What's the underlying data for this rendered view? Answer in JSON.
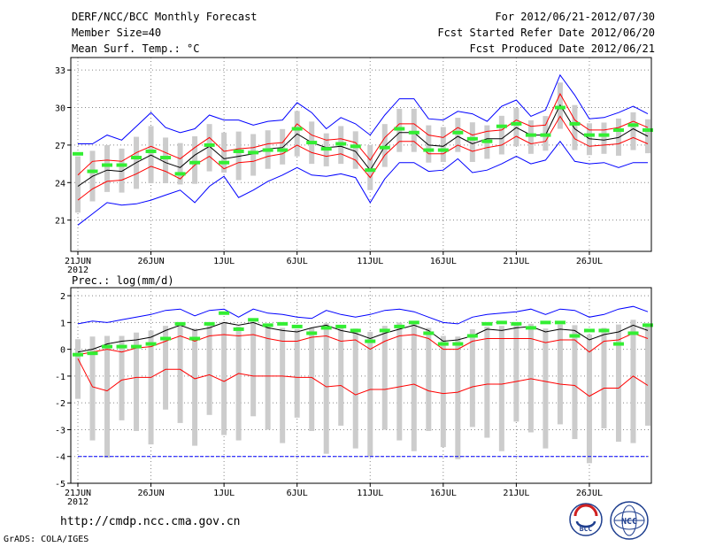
{
  "header": {
    "title": "DERF/NCC/BCC Monthly Forecast",
    "member_size": "Member Size=40",
    "variable": "Mean Surf. Temp.: °C",
    "period": "For 2012/06/21-2012/07/30",
    "refer_date": "Fcst Started Refer Date 2012/06/20",
    "produced_date": "Fcst Produced Date 2012/06/21"
  },
  "precip_label": "Prec.: log(mm/d)",
  "footer": {
    "url": "http://cmdp.ncc.cma.gov.cn",
    "credit": "GrADS: COLA/IGES",
    "logo_bcc": "BCC",
    "logo_ncc": "NCC"
  },
  "colors": {
    "ensemble_max_min": "#0000ff",
    "spread_band": "#ff0000",
    "ensemble_mean": "#000000",
    "member_box": "#cccccc",
    "observed_bar": "#33ee33"
  },
  "chart_data": [
    {
      "type": "line",
      "title": "Mean Surf. Temp.: °C",
      "x": [
        "21JUN",
        "22JUN",
        "23JUN",
        "24JUN",
        "25JUN",
        "26JUN",
        "27JUN",
        "28JUN",
        "29JUN",
        "30JUN",
        "1JUL",
        "2JUL",
        "3JUL",
        "4JUL",
        "5JUL",
        "6JUL",
        "7JUL",
        "8JUL",
        "9JUL",
        "10JUL",
        "11JUL",
        "12JUL",
        "13JUL",
        "14JUL",
        "15JUL",
        "16JUL",
        "17JUL",
        "18JUL",
        "19JUL",
        "20JUL",
        "21JUL",
        "22JUL",
        "23JUL",
        "24JUL",
        "25JUL",
        "26JUL",
        "27JUL",
        "28JUL",
        "29JUL",
        "30JUL"
      ],
      "xticks": [
        "21JUN",
        "26JUN",
        "1JUL",
        "6JUL",
        "11JUL",
        "16JUL",
        "21JUL",
        "26JUL"
      ],
      "xtick_index": [
        0,
        5,
        10,
        15,
        20,
        25,
        30,
        35
      ],
      "year_label": "2012",
      "ylim": [
        18.5,
        34
      ],
      "yticks": [
        21,
        24,
        27,
        30,
        33
      ],
      "grid": true,
      "series": [
        {
          "name": "max",
          "color": "#0000ff",
          "values": [
            20.6,
            21.5,
            22.4,
            22.2,
            22.3,
            22.6,
            23.0,
            23.4,
            22.4,
            23.7,
            24.5,
            22.8,
            23.4,
            24.1,
            24.6,
            25.2,
            24.6,
            24.5,
            24.7,
            24.4,
            22.4,
            24.3,
            25.6,
            25.6,
            24.9,
            25.0,
            25.9,
            24.8,
            25.0,
            25.5,
            26.1,
            25.5,
            25.8,
            27.3,
            25.7,
            25.5,
            25.6,
            25.2,
            25.6,
            25.6
          ]
        },
        {
          "name": "max_top",
          "color": "#0000ff",
          "values": [
            27.1,
            27.1,
            27.8,
            27.4,
            28.5,
            29.6,
            28.4,
            28.0,
            28.3,
            29.4,
            29.0,
            29.0,
            28.6,
            28.9,
            29.0,
            30.4,
            29.6,
            28.3,
            29.2,
            28.7,
            27.8,
            29.4,
            30.7,
            30.7,
            29.1,
            29.0,
            29.7,
            29.5,
            28.9,
            30.1,
            30.6,
            29.3,
            29.8,
            32.6,
            31.0,
            29.1,
            29.2,
            29.6,
            30.1,
            29.5
          ]
        },
        {
          "name": "upper",
          "color": "#ff0000",
          "values": [
            24.6,
            25.7,
            25.8,
            25.7,
            26.4,
            26.9,
            26.4,
            25.9,
            26.8,
            27.6,
            26.5,
            26.7,
            26.8,
            27.1,
            27.2,
            28.7,
            27.8,
            27.4,
            27.5,
            27.2,
            25.8,
            27.6,
            28.7,
            28.7,
            27.8,
            27.6,
            28.4,
            27.8,
            28.1,
            28.2,
            29.0,
            28.5,
            28.6,
            31.1,
            29.0,
            28.2,
            28.2,
            28.4,
            28.9,
            28.4
          ]
        },
        {
          "name": "mean",
          "color": "#000000",
          "values": [
            23.7,
            24.5,
            25.0,
            24.9,
            25.6,
            26.2,
            25.6,
            25.2,
            26.2,
            26.9,
            25.9,
            26.1,
            26.3,
            26.7,
            26.8,
            27.9,
            27.2,
            26.8,
            26.9,
            26.5,
            25.0,
            26.9,
            28.0,
            28.0,
            27.0,
            26.9,
            27.7,
            27.1,
            27.5,
            27.5,
            28.4,
            27.8,
            27.8,
            30.2,
            28.3,
            27.5,
            27.4,
            27.6,
            28.3,
            27.7
          ]
        },
        {
          "name": "lower",
          "color": "#ff0000",
          "values": [
            22.6,
            23.5,
            24.1,
            24.2,
            24.7,
            25.3,
            24.9,
            24.3,
            25.4,
            26.1,
            25.1,
            25.6,
            25.7,
            26.1,
            26.3,
            27.0,
            26.4,
            26.1,
            26.3,
            25.8,
            24.4,
            26.2,
            27.3,
            27.3,
            26.3,
            26.3,
            27.0,
            26.5,
            26.8,
            27.0,
            27.7,
            27.1,
            27.3,
            29.3,
            27.5,
            26.9,
            27.0,
            27.1,
            27.6,
            27.1
          ]
        },
        {
          "name": "observed",
          "color": "#33ee33",
          "values": [
            26.3,
            24.9,
            25.4,
            25.4,
            26.0,
            26.5,
            26.0,
            24.7,
            25.6,
            27.0,
            25.6,
            26.5,
            26.4,
            26.6,
            26.6,
            28.3,
            27.2,
            26.7,
            27.1,
            26.9,
            25.0,
            26.8,
            28.3,
            28.0,
            26.6,
            26.6,
            28.0,
            27.5,
            27.3,
            28.5,
            28.7,
            27.8,
            27.8,
            30.0,
            28.7,
            27.8,
            27.8,
            28.2,
            28.6,
            28.2
          ]
        }
      ]
    },
    {
      "type": "line",
      "title": "Prec.: log(mm/d)",
      "x": [
        "21JUN",
        "22JUN",
        "23JUN",
        "24JUN",
        "25JUN",
        "26JUN",
        "27JUN",
        "28JUN",
        "29JUN",
        "30JUN",
        "1JUL",
        "2JUL",
        "3JUL",
        "4JUL",
        "5JUL",
        "6JUL",
        "7JUL",
        "8JUL",
        "9JUL",
        "10JUL",
        "11JUL",
        "12JUL",
        "13JUL",
        "14JUL",
        "15JUL",
        "16JUL",
        "17JUL",
        "18JUL",
        "19JUL",
        "20JUL",
        "21JUL",
        "22JUL",
        "23JUL",
        "24JUL",
        "25JUL",
        "26JUL",
        "27JUL",
        "28JUL",
        "29JUL",
        "30JUL"
      ],
      "xticks": [
        "21JUN",
        "26JUN",
        "1JUL",
        "6JUL",
        "11JUL",
        "16JUL",
        "21JUL",
        "26JUL"
      ],
      "xtick_index": [
        0,
        5,
        10,
        15,
        20,
        25,
        30,
        35
      ],
      "year_label": "2012",
      "ylim": [
        -5,
        2.3
      ],
      "yticks": [
        -5,
        -4,
        -3,
        -2,
        -1,
        0,
        1,
        2
      ],
      "grid": true,
      "series": [
        {
          "name": "max",
          "color": "#0000ff",
          "values": [
            0.95,
            1.05,
            1.0,
            1.1,
            1.2,
            1.3,
            1.45,
            1.5,
            1.25,
            1.45,
            1.5,
            1.2,
            1.5,
            1.35,
            1.3,
            1.2,
            1.15,
            1.45,
            1.3,
            1.2,
            1.3,
            1.45,
            1.5,
            1.4,
            1.2,
            1.0,
            0.95,
            1.2,
            1.3,
            1.35,
            1.4,
            1.5,
            1.3,
            1.5,
            1.45,
            1.2,
            1.3,
            1.5,
            1.6,
            1.4
          ]
        },
        {
          "name": "upper",
          "color": "#ff0000",
          "values": [
            -0.2,
            -0.1,
            0.0,
            -0.1,
            0.05,
            0.1,
            0.3,
            0.5,
            0.3,
            0.5,
            0.55,
            0.5,
            0.55,
            0.4,
            0.3,
            0.3,
            0.45,
            0.5,
            0.3,
            0.35,
            0.0,
            0.3,
            0.5,
            0.55,
            0.4,
            0.0,
            0.0,
            0.3,
            0.4,
            0.4,
            0.4,
            0.4,
            0.25,
            0.35,
            0.35,
            -0.1,
            0.3,
            0.35,
            0.6,
            0.4
          ]
        },
        {
          "name": "mean",
          "color": "#000000",
          "values": [
            -0.1,
            0.0,
            0.2,
            0.3,
            0.35,
            0.45,
            0.7,
            0.9,
            0.7,
            0.8,
            1.0,
            0.9,
            1.0,
            0.8,
            0.7,
            0.65,
            0.8,
            0.9,
            0.7,
            0.6,
            0.4,
            0.6,
            0.75,
            0.9,
            0.7,
            0.3,
            0.35,
            0.5,
            0.75,
            0.7,
            0.8,
            0.85,
            0.65,
            0.75,
            0.7,
            0.35,
            0.55,
            0.65,
            0.9,
            0.7
          ]
        },
        {
          "name": "lower",
          "color": "#ff0000",
          "values": [
            -0.35,
            -1.4,
            -1.55,
            -1.15,
            -1.05,
            -1.05,
            -0.75,
            -0.75,
            -1.1,
            -0.95,
            -1.2,
            -0.9,
            -1.0,
            -1.0,
            -1.0,
            -1.05,
            -1.05,
            -1.4,
            -1.35,
            -1.7,
            -1.5,
            -1.5,
            -1.4,
            -1.3,
            -1.55,
            -1.65,
            -1.6,
            -1.4,
            -1.3,
            -1.3,
            -1.2,
            -1.1,
            -1.2,
            -1.3,
            -1.35,
            -1.75,
            -1.45,
            -1.45,
            -1.0,
            -1.35
          ]
        },
        {
          "name": "min",
          "color": "#0000ff",
          "values": [
            -4,
            -4,
            -4,
            -4,
            -4,
            -4,
            -4,
            -4,
            -4,
            -4,
            -4,
            -4,
            -4,
            -4,
            -4,
            -4,
            -4,
            -4,
            -4,
            -4,
            -4,
            -4,
            -4,
            -4,
            -4,
            -4,
            -4,
            -4,
            -4,
            -4,
            -4,
            -4,
            -4,
            -4,
            -4,
            -4,
            -4,
            -4,
            -4,
            -4
          ]
        },
        {
          "name": "observed",
          "color": "#33ee33",
          "values": [
            -0.2,
            -0.15,
            0.1,
            0.1,
            0.1,
            0.2,
            0.4,
            0.95,
            0.4,
            0.95,
            1.35,
            0.75,
            1.1,
            0.9,
            0.95,
            0.85,
            0.6,
            0.8,
            0.85,
            0.7,
            0.3,
            0.7,
            0.85,
            1.0,
            0.6,
            0.2,
            0.2,
            0.5,
            0.95,
            1.0,
            0.95,
            0.8,
            1.0,
            1.0,
            0.5,
            0.7,
            0.7,
            0.2,
            0.6,
            0.9
          ]
        }
      ]
    }
  ]
}
